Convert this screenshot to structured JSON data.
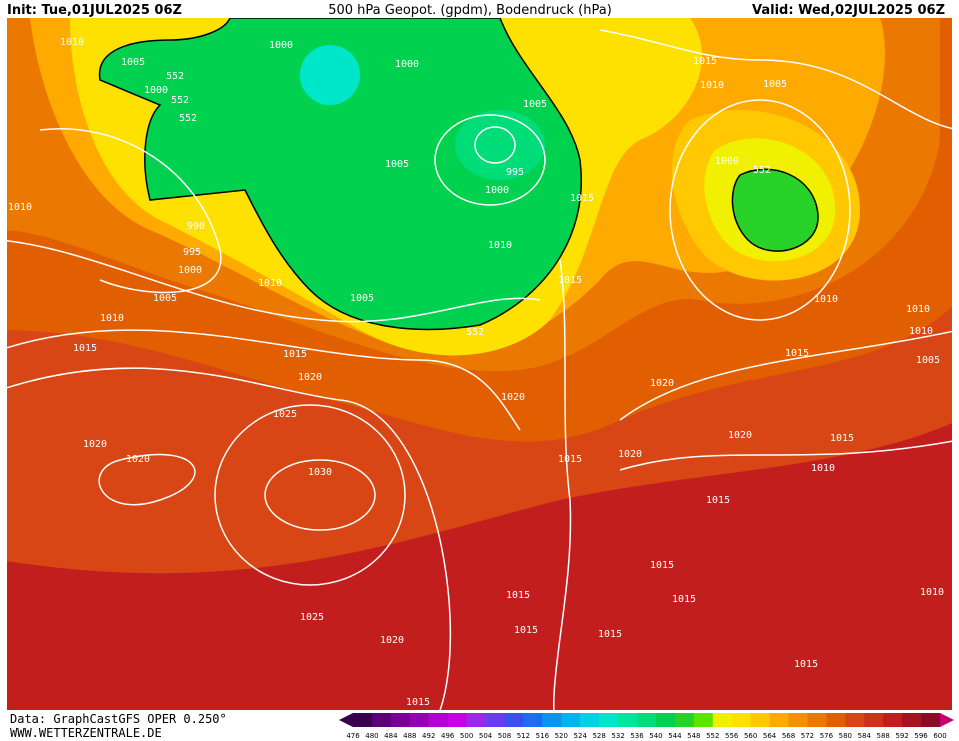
{
  "header": {
    "init": "Init: Tue,01JUL2025 06Z",
    "title": "500 hPa Geopot. (gpdm), Bodendruck (hPa)",
    "valid": "Valid: Wed,02JUL2025 06Z"
  },
  "footer": {
    "source": "Data: GraphCastGFS OPER 0.250°",
    "site": "WWW.WETTERZENTRALE.DE"
  },
  "isobar_labels": [
    "1010",
    "1005",
    "552",
    "1000",
    "552",
    "552",
    "1000",
    "1000",
    "1005",
    "995",
    "1005",
    "1000",
    "1015",
    "1010",
    "1010",
    "990",
    "995",
    "1000",
    "1005",
    "1010",
    "1010",
    "1005",
    "552",
    "1015",
    "1015",
    "1010",
    "1005",
    "1000",
    "552",
    "1010",
    "1010",
    "1010",
    "1005",
    "1015",
    "1015",
    "1015",
    "1020",
    "1025",
    "1020",
    "1020",
    "1020",
    "1015",
    "1010",
    "1020",
    "1020",
    "1020",
    "1015",
    "1030",
    "1015",
    "1015",
    "1015",
    "1015",
    "1015",
    "1015",
    "1010",
    "1025",
    "1020",
    "1015",
    "1015"
  ],
  "colorbar": {
    "labels": [
      476,
      480,
      484,
      488,
      492,
      496,
      500,
      504,
      508,
      512,
      516,
      520,
      524,
      528,
      532,
      536,
      540,
      544,
      548,
      552,
      556,
      560,
      564,
      568,
      572,
      576,
      580,
      584,
      588,
      592,
      596,
      600
    ],
    "colors": [
      "#3a0050",
      "#5a0078",
      "#7a0096",
      "#9600b4",
      "#b400d2",
      "#c800e6",
      "#9a28e6",
      "#6a3cf0",
      "#3c50f0",
      "#1e6cf0",
      "#0a96f0",
      "#00b4f0",
      "#00d2e6",
      "#00e6c8",
      "#00e6a0",
      "#00dc78",
      "#00d250",
      "#28d228",
      "#5ae600",
      "#f0f000",
      "#ffe100",
      "#ffc800",
      "#ffaa00",
      "#f59100",
      "#eb7800",
      "#e15f00",
      "#d74614",
      "#cd321e",
      "#c31e1e",
      "#a5141e",
      "#8c0a28"
    ]
  }
}
